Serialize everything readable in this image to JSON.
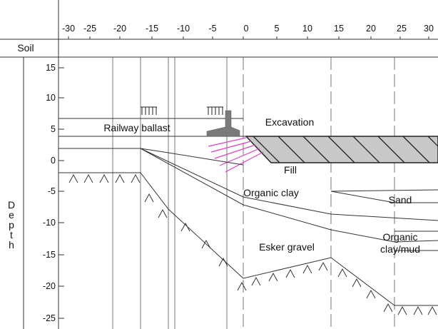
{
  "header": {
    "soil_label": "Soil",
    "depth_label": "Depth"
  },
  "x_axis": {
    "ticks": [
      -30,
      -25,
      -20,
      -15,
      -10,
      -5,
      0,
      5,
      10,
      15,
      20,
      25,
      30
    ],
    "labels": [
      "-30",
      "-25",
      "-20",
      "-15",
      "-10",
      "-5",
      "0",
      "5",
      "10",
      "15",
      "20",
      "25",
      "30"
    ]
  },
  "y_axis": {
    "ticks": [
      15,
      10,
      5,
      0,
      -5,
      -10,
      -15,
      -20,
      -25
    ],
    "labels": [
      "15",
      "10",
      "5",
      "0",
      "-5",
      "-10",
      "-15",
      "-20",
      "-25"
    ]
  },
  "layers": {
    "railway_ballast": "Railway ballast",
    "excavation": "Excavation",
    "fill": "Fill",
    "organic_clay": "Organic clay",
    "sand": "Sand",
    "organic_clay_mud_line1": "Organic",
    "organic_clay_mud_line2": "clay/mud",
    "esker_gravel": "Esker gravel"
  },
  "colors": {
    "stroke": "#333333",
    "hatch_fill": "#c8c8c8",
    "anchors": "#e040c8",
    "excavation_edge": "#ff2a2a",
    "rail": "#7a7a7a"
  }
}
